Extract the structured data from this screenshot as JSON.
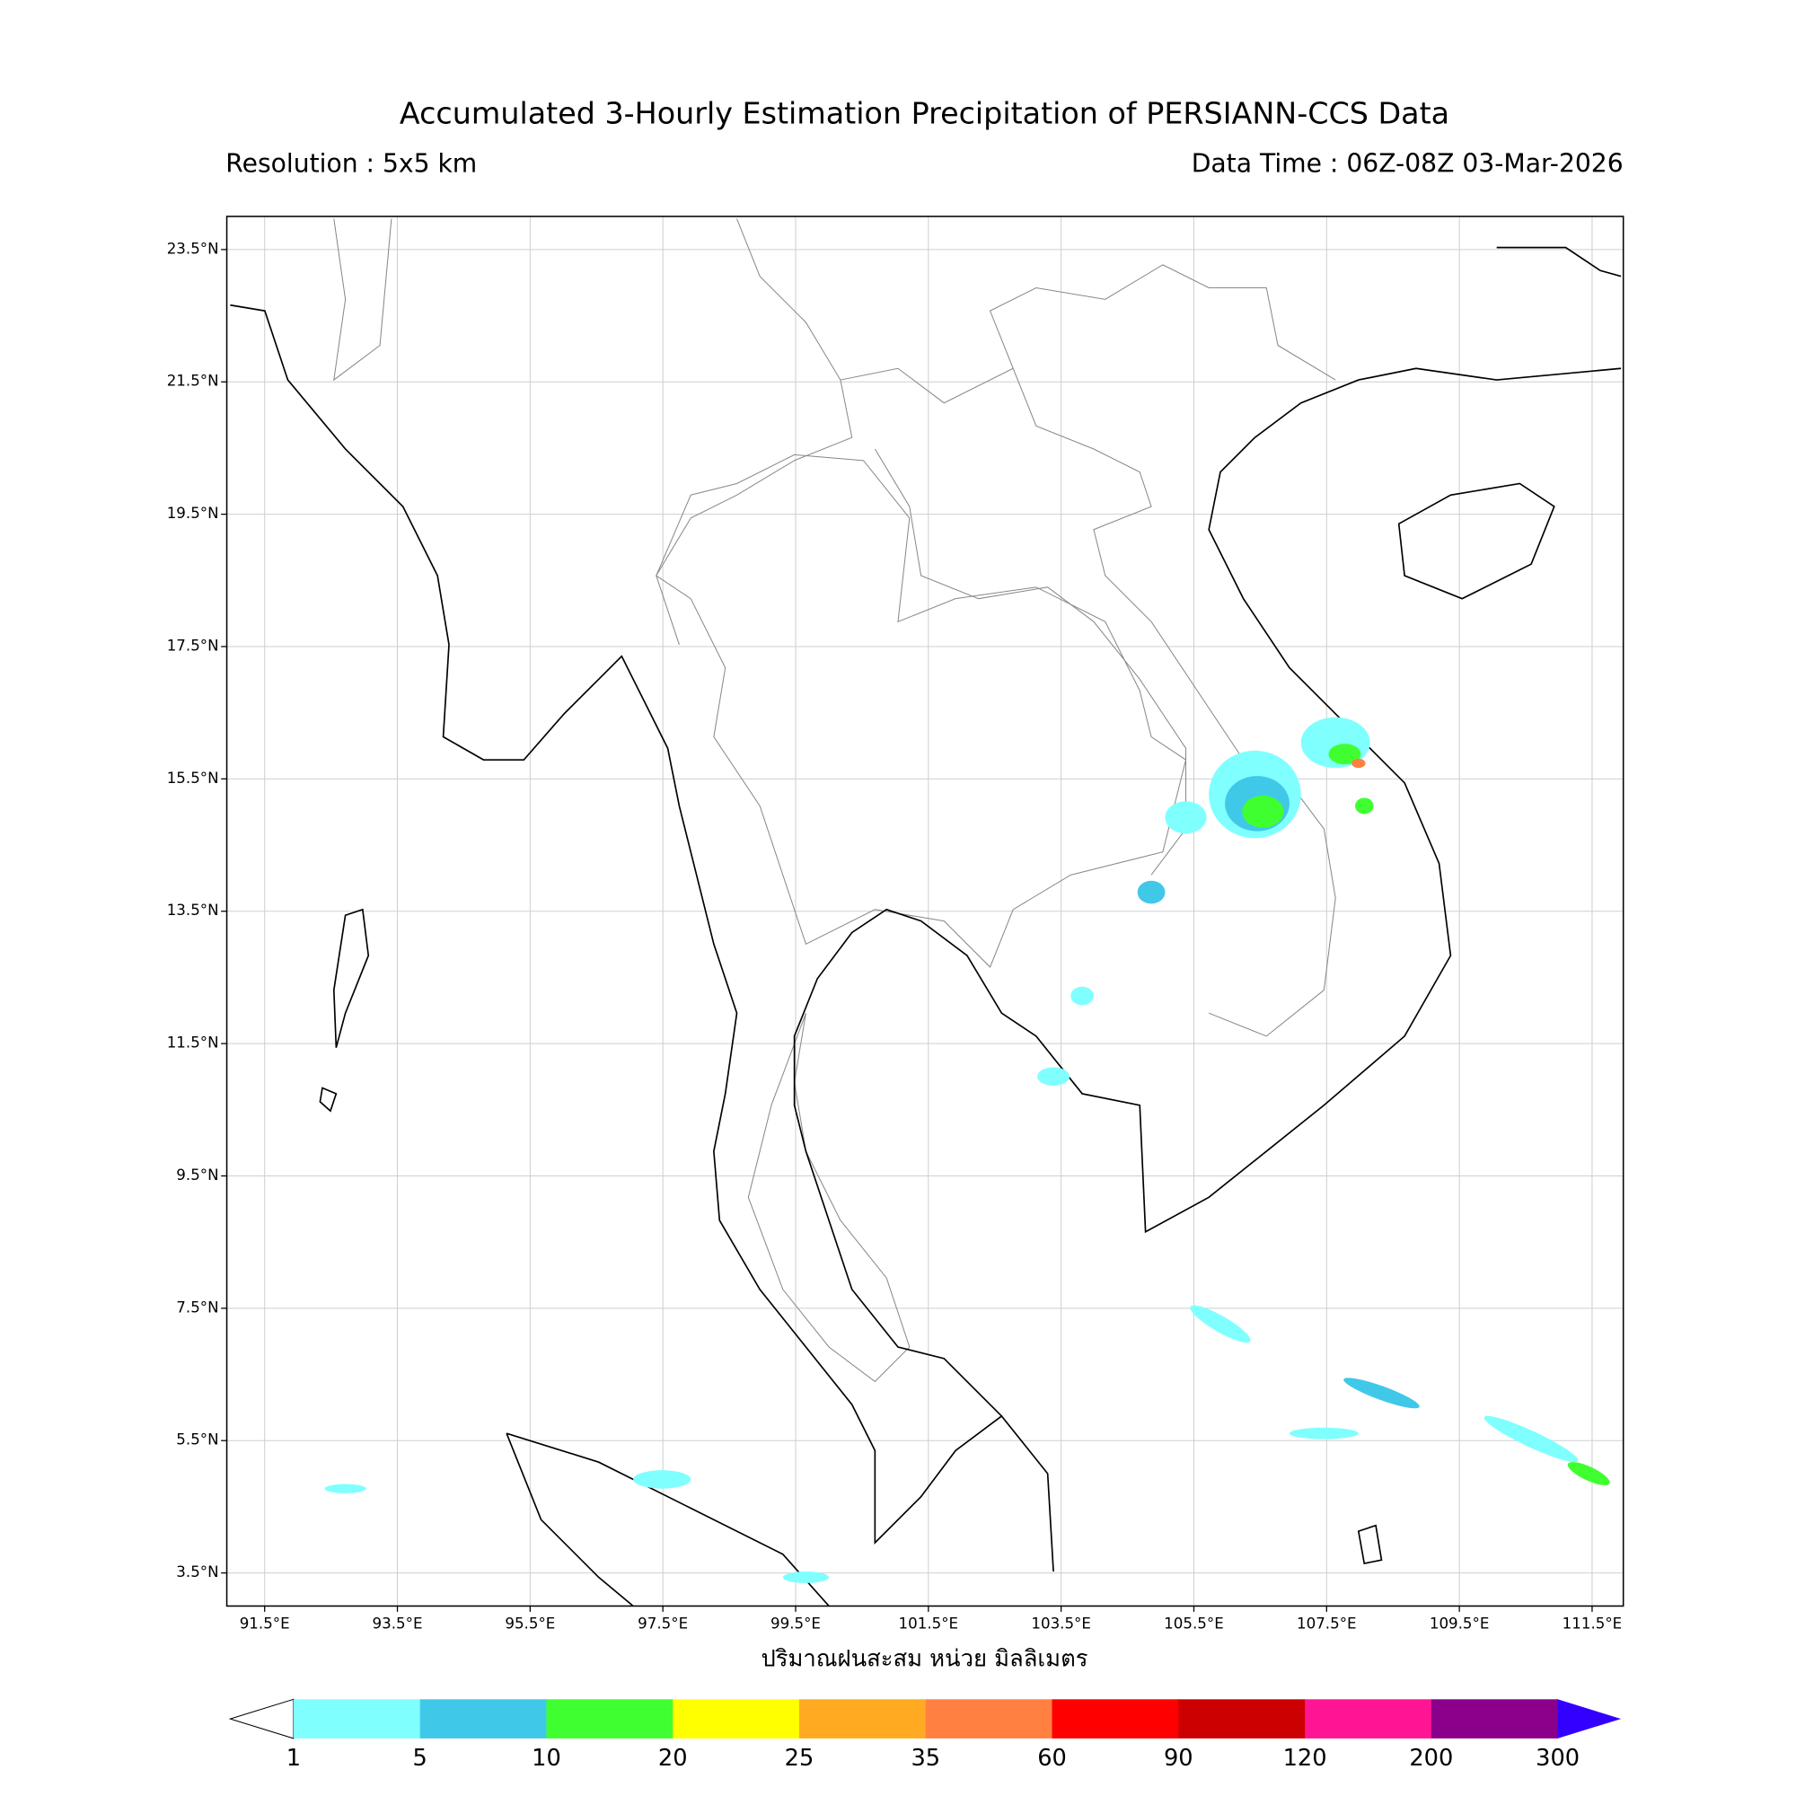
{
  "title": "Accumulated 3-Hourly Estimation Precipitation of PERSIANN-CCS Data",
  "resolution": "Resolution : 5x5 km",
  "data_time": "Data Time : 06Z-08Z 03-Mar-2026",
  "map": {
    "xlim": [
      90.93,
      111.97
    ],
    "ylim": [
      3.0,
      24.0
    ],
    "xticks": [
      {
        "value": 91.5,
        "label": "91.5°E"
      },
      {
        "value": 93.5,
        "label": "93.5°E"
      },
      {
        "value": 95.5,
        "label": "95.5°E"
      },
      {
        "value": 97.5,
        "label": "97.5°E"
      },
      {
        "value": 99.5,
        "label": "99.5°E"
      },
      {
        "value": 101.5,
        "label": "101.5°E"
      },
      {
        "value": 103.5,
        "label": "103.5°E"
      },
      {
        "value": 105.5,
        "label": "105.5°E"
      },
      {
        "value": 107.5,
        "label": "107.5°E"
      },
      {
        "value": 109.5,
        "label": "109.5°E"
      },
      {
        "value": 111.5,
        "label": "111.5°E"
      }
    ],
    "yticks": [
      {
        "value": 3.5,
        "label": "3.5°N"
      },
      {
        "value": 5.5,
        "label": "5.5°N"
      },
      {
        "value": 7.5,
        "label": "7.5°N"
      },
      {
        "value": 9.5,
        "label": "9.5°N"
      },
      {
        "value": 11.5,
        "label": "11.5°N"
      },
      {
        "value": 13.5,
        "label": "13.5°N"
      },
      {
        "value": 15.5,
        "label": "15.5°N"
      },
      {
        "value": 17.5,
        "label": "17.5°N"
      },
      {
        "value": 19.5,
        "label": "19.5°N"
      },
      {
        "value": 21.5,
        "label": "21.5°N"
      },
      {
        "value": 23.5,
        "label": "23.5°N"
      }
    ],
    "grid": true,
    "xlabel": "ปริมาณฝนสะสม หน่วย มิลลิเมตร"
  },
  "colorbar": {
    "levels": [
      1,
      5,
      10,
      20,
      25,
      35,
      60,
      90,
      120,
      200,
      300
    ],
    "colors": [
      "#80ffff",
      "#40c8e8",
      "#40ff30",
      "#ffff00",
      "#ffaa20",
      "#ff8040",
      "#ff0000",
      "#cc0000",
      "#ff1493",
      "#8b008b"
    ],
    "under_color": "#ffffff",
    "over_color": "#3300ff"
  }
}
